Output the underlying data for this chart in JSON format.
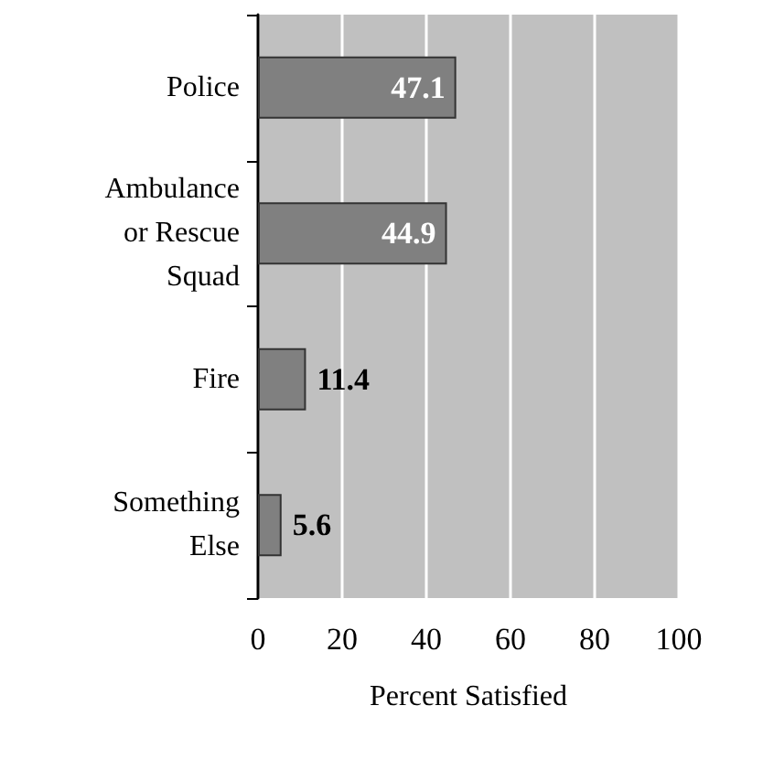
{
  "chart_data": {
    "type": "bar",
    "orientation": "horizontal",
    "xlabel": "Percent Satisfied",
    "categories": [
      "Police",
      "Ambulance\nor Rescue\nSquad",
      "Fire",
      "Something\nElse"
    ],
    "values": [
      47.1,
      44.9,
      11.4,
      5.6
    ],
    "color": "#808080",
    "xlim": [
      0,
      100
    ],
    "xticks": [
      0,
      20,
      40,
      60,
      80,
      100
    ],
    "grid": "x",
    "data_labels": true
  }
}
